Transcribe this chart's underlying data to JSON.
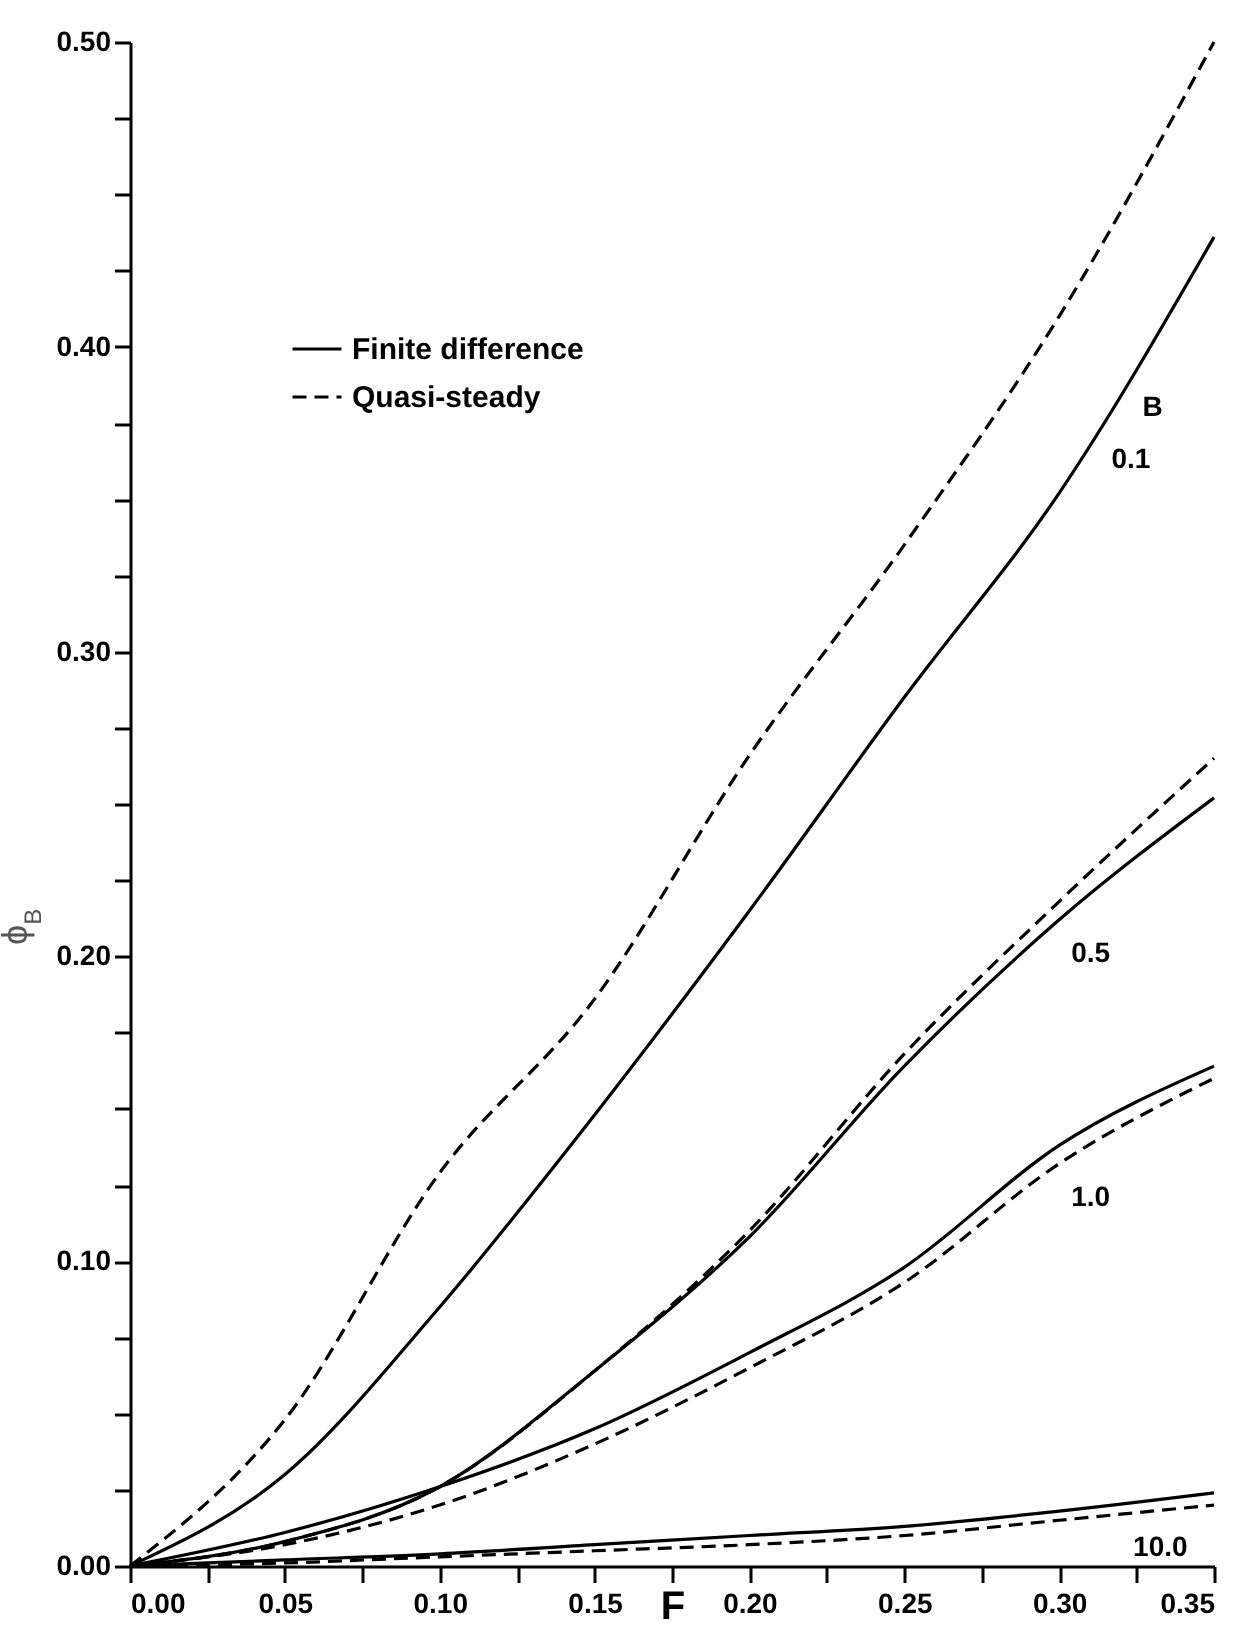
{
  "chart_data": {
    "type": "line",
    "xlabel": "F",
    "ylabel": "ϕ$_{B}$",
    "x": [
      0,
      0.05,
      0.1,
      0.15,
      0.2,
      0.25,
      0.3,
      0.35
    ],
    "xlim": [
      0,
      0.35
    ],
    "ylim": [
      0,
      0.5
    ],
    "xticks": [
      {
        "value": 0,
        "label": "0.00"
      },
      {
        "value": 0.025,
        "label": null
      },
      {
        "value": 0.05,
        "label": "0.05"
      },
      {
        "value": 0.075,
        "label": null
      },
      {
        "value": 0.1,
        "label": "0.10"
      },
      {
        "value": 0.125,
        "label": null
      },
      {
        "value": 0.15,
        "label": "0.15"
      },
      {
        "value": 0.175,
        "label": null
      },
      {
        "value": 0.2,
        "label": "0.20"
      },
      {
        "value": 0.225,
        "label": null
      },
      {
        "value": 0.25,
        "label": "0.25"
      },
      {
        "value": 0.275,
        "label": null
      },
      {
        "value": 0.3,
        "label": "0.30"
      },
      {
        "value": 0.325,
        "label": null
      },
      {
        "value": 0.35,
        "label": "0.35"
      }
    ],
    "yticks": [
      {
        "value": 0,
        "label": "0.00"
      },
      {
        "value": 0.025,
        "label": null
      },
      {
        "value": 0.05,
        "label": null
      },
      {
        "value": 0.075,
        "label": null
      },
      {
        "value": 0.1,
        "label": "0.10"
      },
      {
        "value": 0.125,
        "label": null
      },
      {
        "value": 0.15,
        "label": null
      },
      {
        "value": 0.175,
        "label": null
      },
      {
        "value": 0.2,
        "label": "0.20"
      },
      {
        "value": 0.225,
        "label": null
      },
      {
        "value": 0.25,
        "label": null
      },
      {
        "value": 0.275,
        "label": null
      },
      {
        "value": 0.3,
        "label": "0.30"
      },
      {
        "value": 0.325,
        "label": null
      },
      {
        "value": 0.35,
        "label": null
      },
      {
        "value": 0.375,
        "label": null
      },
      {
        "value": 0.4,
        "label": "0.40"
      },
      {
        "value": 0.425,
        "label": null
      },
      {
        "value": 0.45,
        "label": null
      },
      {
        "value": 0.475,
        "label": null
      },
      {
        "value": 0.5,
        "label": "0.50"
      }
    ],
    "legend": "top left",
    "series": [
      {
        "name": "Finite difference",
        "color": "#000000",
        "line_style": "solid",
        "values": [
          0,
          0.03,
          0.085,
          0.148,
          0.215,
          0.285,
          0.352,
          0.436
        ]
      },
      {
        "name": "Quasi-steady",
        "color": "#000000",
        "line_style": "dashed",
        "values": [
          0,
          0.048,
          0.129,
          0.186,
          0.266,
          0.335,
          0.41,
          0.5
        ]
      },
      {
        "color": "#000000",
        "line_style": "solid",
        "values": [
          0,
          0.008,
          0.026,
          0.064,
          0.108,
          0.164,
          0.212,
          0.252
        ]
      },
      {
        "color": "#000000",
        "line_style": "dashed",
        "values": [
          0,
          0.008,
          0.026,
          0.064,
          0.11,
          0.168,
          0.218,
          0.265
        ]
      },
      {
        "color": "#000000",
        "line_style": "solid",
        "values": [
          0,
          0.011,
          0.026,
          0.045,
          0.07,
          0.098,
          0.138,
          0.164
        ]
      },
      {
        "color": "#000000",
        "line_style": "dashed",
        "values": [
          0,
          0.007,
          0.02,
          0.04,
          0.065,
          0.093,
          0.132,
          0.16
        ]
      },
      {
        "color": "#000000",
        "line_style": "solid",
        "values": [
          0,
          0.002,
          0.004,
          0.007,
          0.01,
          0.013,
          0.018,
          0.024
        ]
      },
      {
        "color": "#000000",
        "line_style": "dashed",
        "values": [
          0,
          0.001,
          0.003,
          0.005,
          0.007,
          0.01,
          0.015,
          0.02
        ]
      }
    ],
    "annotations": [
      {
        "text": "B",
        "x": 0.323,
        "y": 0.391
      },
      {
        "text": "0.1",
        "x": 0.313,
        "y": 0.374
      },
      {
        "text": "0.5",
        "x": 0.3,
        "y": 0.212
      },
      {
        "text": "1.0",
        "x": 0.3,
        "y": 0.132
      },
      {
        "text": "10.0",
        "x": 0.32,
        "y": 0.017
      }
    ]
  }
}
